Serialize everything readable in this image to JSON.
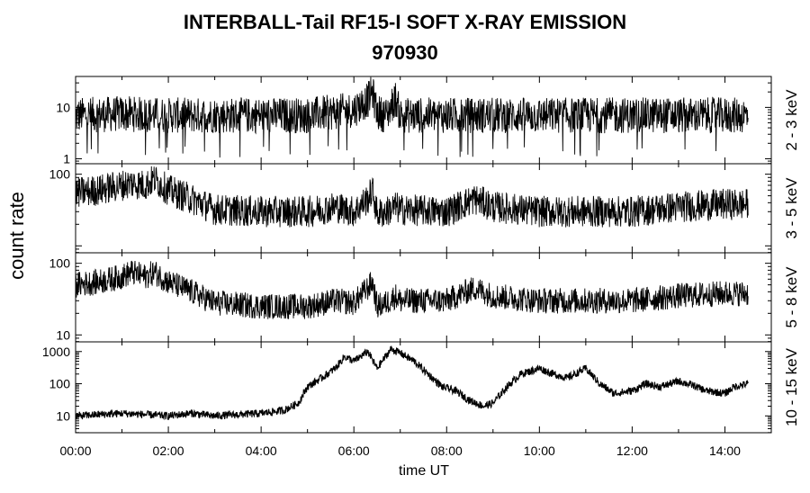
{
  "title": "INTERBALL-Tail RF15-I SOFT X-RAY EMISSION",
  "subtitle": "970930",
  "xlabel": "time UT",
  "ylabel": "count rate",
  "chart_data": {
    "type": "line",
    "x_unit": "hours UT",
    "xlim": [
      0,
      15
    ],
    "x_ticks": [
      0,
      2,
      4,
      6,
      8,
      10,
      12,
      14
    ],
    "x_tick_labels": [
      "00:00",
      "02:00",
      "04:00",
      "06:00",
      "08:00",
      "10:00",
      "12:00",
      "14:00"
    ],
    "y_scale": "log",
    "panels": [
      {
        "name": "2 - 3 keV",
        "ylim": [
          0.8,
          40
        ],
        "y_ticks": [
          1,
          10
        ],
        "y_tick_labels": [
          "1",
          "10"
        ],
        "x": [
          0,
          1,
          2,
          3,
          4,
          5,
          5.5,
          6.0,
          6.3,
          6.4,
          6.5,
          6.7,
          6.9,
          7,
          8,
          9,
          10,
          11,
          12,
          13,
          14,
          14.5
        ],
        "y": [
          7,
          7.5,
          7,
          7,
          7,
          7,
          8,
          9,
          14,
          20,
          8,
          7,
          15,
          7,
          7,
          7,
          7,
          7,
          7,
          7,
          7,
          7
        ]
      },
      {
        "name": "3 - 5 keV",
        "ylim": [
          8,
          140
        ],
        "y_ticks": [
          100
        ],
        "y_tick_labels": [
          "100"
        ],
        "x": [
          0,
          0.5,
          1.0,
          1.2,
          1.5,
          1.7,
          2.0,
          2.5,
          3.0,
          4.0,
          5.0,
          5.6,
          6.0,
          6.3,
          6.4,
          6.5,
          6.7,
          6.9,
          7.0,
          8.0,
          8.6,
          8.8,
          9.0,
          10.0,
          11.0,
          12.0,
          13.0,
          14.0,
          14.5
        ],
        "y": [
          55,
          60,
          70,
          75,
          70,
          85,
          60,
          45,
          32,
          30,
          30,
          35,
          30,
          45,
          60,
          28,
          30,
          35,
          32,
          30,
          45,
          40,
          35,
          30,
          30,
          30,
          35,
          38,
          38
        ]
      },
      {
        "name": "5 - 8 keV",
        "ylim": [
          8,
          140
        ],
        "y_ticks": [
          10,
          100
        ],
        "y_tick_labels": [
          "10",
          "100"
        ],
        "x": [
          0,
          0.5,
          1.0,
          1.2,
          1.5,
          1.7,
          2.0,
          2.5,
          3.0,
          4.0,
          5.0,
          5.6,
          6.0,
          6.3,
          6.4,
          6.5,
          6.7,
          6.9,
          7.0,
          8.0,
          8.6,
          8.8,
          9.0,
          10.0,
          11.0,
          12.0,
          13.0,
          14.0,
          14.5
        ],
        "y": [
          50,
          55,
          65,
          75,
          65,
          75,
          55,
          40,
          28,
          25,
          25,
          30,
          28,
          45,
          55,
          25,
          28,
          35,
          30,
          30,
          45,
          40,
          35,
          30,
          30,
          30,
          35,
          38,
          38
        ]
      },
      {
        "name": "10 - 15 keV",
        "ylim": [
          3,
          2000
        ],
        "y_ticks": [
          10,
          100,
          1000
        ],
        "y_tick_labels": [
          "10",
          "100",
          "1000"
        ],
        "x": [
          0,
          0.5,
          1.0,
          1.5,
          2.0,
          2.5,
          3.0,
          3.5,
          4.0,
          4.5,
          4.8,
          5.0,
          5.3,
          5.6,
          5.8,
          6.0,
          6.3,
          6.5,
          6.8,
          7.0,
          7.3,
          7.6,
          7.9,
          8.2,
          8.5,
          8.8,
          9.0,
          9.3,
          9.6,
          10.0,
          10.3,
          10.6,
          11.0,
          11.3,
          11.6,
          12.0,
          12.3,
          12.6,
          13.0,
          13.3,
          13.6,
          14.0,
          14.2,
          14.5
        ],
        "y": [
          10,
          11,
          12,
          11,
          10,
          12,
          10,
          11,
          12,
          15,
          25,
          80,
          150,
          300,
          700,
          500,
          1000,
          300,
          1200,
          900,
          500,
          200,
          80,
          60,
          30,
          20,
          25,
          80,
          200,
          300,
          200,
          150,
          300,
          100,
          50,
          60,
          100,
          80,
          120,
          90,
          60,
          50,
          80,
          100
        ]
      }
    ]
  }
}
